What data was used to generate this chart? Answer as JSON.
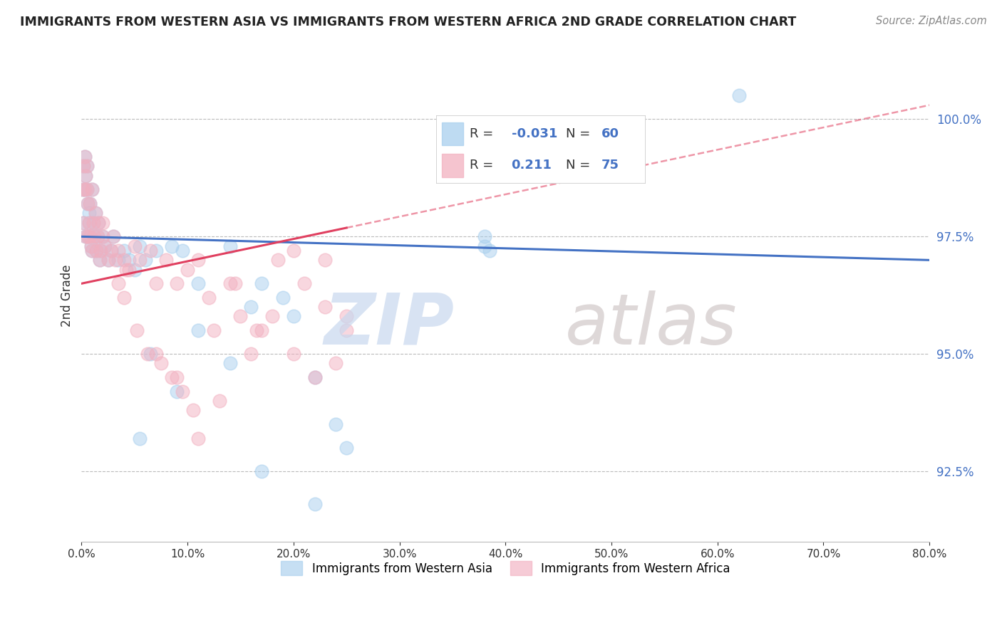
{
  "title": "IMMIGRANTS FROM WESTERN ASIA VS IMMIGRANTS FROM WESTERN AFRICA 2ND GRADE CORRELATION CHART",
  "source": "Source: ZipAtlas.com",
  "ylabel": "2nd Grade",
  "yticks": [
    92.5,
    95.0,
    97.5,
    100.0
  ],
  "xlim": [
    0.0,
    80.0
  ],
  "ylim": [
    91.0,
    101.5
  ],
  "legend_blue_r": "-0.031",
  "legend_blue_n": "60",
  "legend_pink_r": "0.211",
  "legend_pink_n": "75",
  "blue_color": "#A8CFEE",
  "pink_color": "#F2B0C0",
  "blue_line_color": "#4472C4",
  "pink_line_color": "#E04060",
  "watermark_zip": "ZIP",
  "watermark_atlas": "atlas",
  "blue_line_x0": 0.0,
  "blue_line_y0": 97.5,
  "blue_line_x1": 80.0,
  "blue_line_y1": 97.0,
  "pink_line_x0": 0.0,
  "pink_line_y0": 96.5,
  "pink_line_x1": 80.0,
  "pink_line_y1": 100.3,
  "pink_solid_end": 25.0,
  "blue_scatter_x": [
    0.1,
    0.2,
    0.2,
    0.3,
    0.3,
    0.4,
    0.4,
    0.5,
    0.5,
    0.6,
    0.6,
    0.7,
    0.7,
    0.8,
    0.8,
    0.9,
    1.0,
    1.0,
    1.1,
    1.2,
    1.3,
    1.4,
    1.5,
    1.6,
    1.7,
    1.8,
    2.0,
    2.2,
    2.5,
    2.8,
    3.0,
    3.5,
    4.0,
    4.5,
    5.0,
    5.5,
    6.0,
    7.0,
    8.5,
    9.5,
    11.0,
    14.0,
    17.0,
    19.0,
    22.0,
    24.0,
    38.0,
    38.5,
    62.0,
    14.0,
    5.5,
    6.5,
    9.0,
    11.0,
    16.0,
    20.0,
    38.0,
    22.0,
    25.0,
    17.0
  ],
  "blue_scatter_y": [
    98.5,
    99.0,
    97.8,
    99.2,
    98.5,
    98.8,
    97.5,
    98.5,
    99.0,
    98.2,
    97.5,
    97.8,
    98.0,
    97.5,
    98.2,
    97.3,
    98.5,
    97.2,
    97.8,
    97.5,
    98.0,
    97.2,
    97.5,
    97.8,
    97.0,
    97.2,
    97.5,
    97.3,
    97.0,
    97.2,
    97.5,
    97.0,
    97.2,
    97.0,
    96.8,
    97.3,
    97.0,
    97.2,
    97.3,
    97.2,
    96.5,
    97.3,
    96.5,
    96.2,
    94.5,
    93.5,
    97.5,
    97.2,
    100.5,
    94.8,
    93.2,
    95.0,
    94.2,
    95.5,
    96.0,
    95.8,
    97.3,
    91.8,
    93.0,
    92.5
  ],
  "pink_scatter_x": [
    0.1,
    0.2,
    0.2,
    0.3,
    0.3,
    0.4,
    0.4,
    0.5,
    0.5,
    0.6,
    0.6,
    0.7,
    0.8,
    0.8,
    0.9,
    1.0,
    1.0,
    1.1,
    1.2,
    1.3,
    1.4,
    1.5,
    1.6,
    1.7,
    1.8,
    2.0,
    2.2,
    2.5,
    2.8,
    3.0,
    3.2,
    3.5,
    4.0,
    4.5,
    5.0,
    5.5,
    6.5,
    7.0,
    8.0,
    9.0,
    10.0,
    11.0,
    12.0,
    14.0,
    15.0,
    17.0,
    18.0,
    20.0,
    22.0,
    24.0,
    3.5,
    4.2,
    5.2,
    6.2,
    7.5,
    8.5,
    9.5,
    10.5,
    12.5,
    14.5,
    16.5,
    18.5,
    21.0,
    23.0,
    25.0,
    2.0,
    4.0,
    7.0,
    9.0,
    11.0,
    13.0,
    16.0,
    20.0,
    23.0,
    25.0
  ],
  "pink_scatter_y": [
    98.5,
    99.0,
    97.8,
    99.2,
    98.5,
    98.8,
    97.5,
    98.5,
    99.0,
    98.2,
    97.5,
    97.8,
    97.5,
    98.2,
    97.3,
    98.5,
    97.2,
    97.8,
    97.5,
    98.0,
    97.2,
    97.5,
    97.8,
    97.0,
    97.2,
    97.5,
    97.3,
    97.0,
    97.2,
    97.5,
    97.0,
    97.2,
    97.0,
    96.8,
    97.3,
    97.0,
    97.2,
    96.5,
    97.0,
    96.5,
    96.8,
    97.0,
    96.2,
    96.5,
    95.8,
    95.5,
    95.8,
    95.0,
    94.5,
    94.8,
    96.5,
    96.8,
    95.5,
    95.0,
    94.8,
    94.5,
    94.2,
    93.8,
    95.5,
    96.5,
    95.5,
    97.0,
    96.5,
    96.0,
    95.5,
    97.8,
    96.2,
    95.0,
    94.5,
    93.2,
    94.0,
    95.0,
    97.2,
    97.0,
    95.8
  ]
}
